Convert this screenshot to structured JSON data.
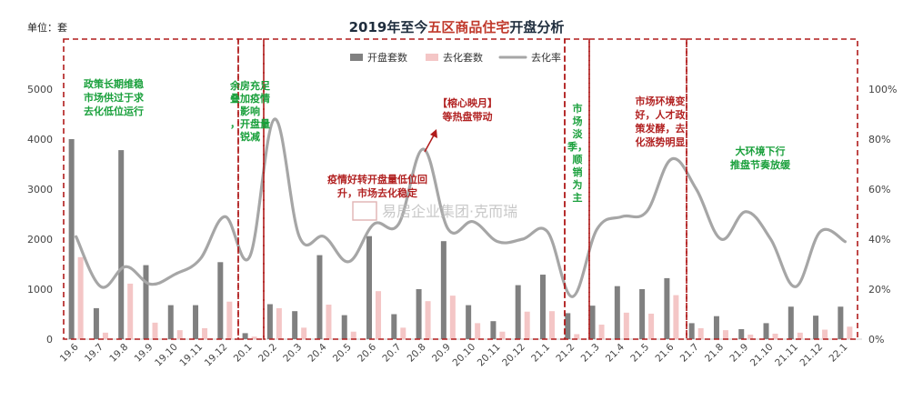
{
  "chart_data": {
    "type": "bar",
    "title_parts": [
      "2019年至今",
      "五区商品住宅",
      "开盘分析"
    ],
    "unit_label": "单位：套",
    "categories": [
      "19.6",
      "19.7",
      "19.8",
      "19.9",
      "19.10",
      "19.11",
      "19.12",
      "20.1",
      "20.2",
      "20.3",
      "20.4",
      "20.5",
      "20.6",
      "20.7",
      "20.8",
      "20.9",
      "20.10",
      "20.11",
      "20.12",
      "21.1",
      "21.2",
      "21.3",
      "21.4",
      "21.5",
      "21.6",
      "21.7",
      "21.8",
      "21.9",
      "21.10",
      "21.11",
      "21.12",
      "22.1"
    ],
    "series": [
      {
        "name": "开盘套数",
        "kind": "bar",
        "axis": "left",
        "color": "#808080",
        "values": [
          4000,
          620,
          3780,
          1480,
          680,
          680,
          1540,
          120,
          700,
          560,
          1680,
          480,
          2060,
          500,
          1000,
          1960,
          680,
          360,
          1080,
          1290,
          520,
          670,
          1060,
          1000,
          1220,
          320,
          460,
          200,
          320,
          650,
          470,
          650
        ]
      },
      {
        "name": "去化套数",
        "kind": "bar",
        "axis": "left",
        "color": "#f4c6c6",
        "values": [
          1640,
          130,
          1110,
          330,
          180,
          220,
          750,
          50,
          620,
          230,
          690,
          150,
          960,
          230,
          760,
          870,
          320,
          150,
          550,
          560,
          100,
          290,
          530,
          510,
          880,
          220,
          180,
          90,
          110,
          130,
          190,
          250
        ]
      },
      {
        "name": "去化率",
        "kind": "line",
        "axis": "right",
        "color": "#a6a6a6",
        "values": [
          0.41,
          0.21,
          0.29,
          0.22,
          0.26,
          0.32,
          0.49,
          0.33,
          0.88,
          0.41,
          0.41,
          0.31,
          0.46,
          0.46,
          0.76,
          0.44,
          0.47,
          0.39,
          0.4,
          0.43,
          0.17,
          0.44,
          0.49,
          0.51,
          0.72,
          0.6,
          0.4,
          0.51,
          0.4,
          0.21,
          0.43,
          0.39
        ]
      }
    ],
    "y_left": {
      "min": 0,
      "max": 5000,
      "ticks": [
        "0",
        "1000",
        "2000",
        "3000",
        "4000",
        "5000"
      ]
    },
    "y_right": {
      "min": 0,
      "max": 1,
      "ticks": [
        "0%",
        "20%",
        "40%",
        "60%",
        "80%",
        "100%"
      ]
    },
    "legend_position": "top-center",
    "grid": false,
    "annotations": [
      {
        "color": "green",
        "lines": [
          "政策长期维稳",
          "市场供过于求",
          "去化低位运行"
        ]
      },
      {
        "color": "green",
        "lines": [
          "余房充足",
          "叠加疫情",
          "影响",
          "，开盘量",
          "锐减"
        ]
      },
      {
        "color": "red",
        "lines": [
          "疫情好转开盘量低位回",
          "升，市场去化稳定"
        ]
      },
      {
        "color": "red",
        "lines": [
          "【榕心映月】",
          "等热盘带动"
        ]
      },
      {
        "color": "green",
        "lines": [
          "市",
          "场",
          "淡",
          "季，",
          "顺",
          "销",
          "为",
          "主"
        ]
      },
      {
        "color": "red",
        "lines": [
          "市场环境变",
          "好，人才政",
          "策发酵，去",
          "化涨势明显"
        ]
      },
      {
        "color": "green",
        "lines": [
          "大环境下行",
          "推盘节奏放缓"
        ]
      }
    ],
    "watermark": "易居企业集团·克而瑞"
  }
}
